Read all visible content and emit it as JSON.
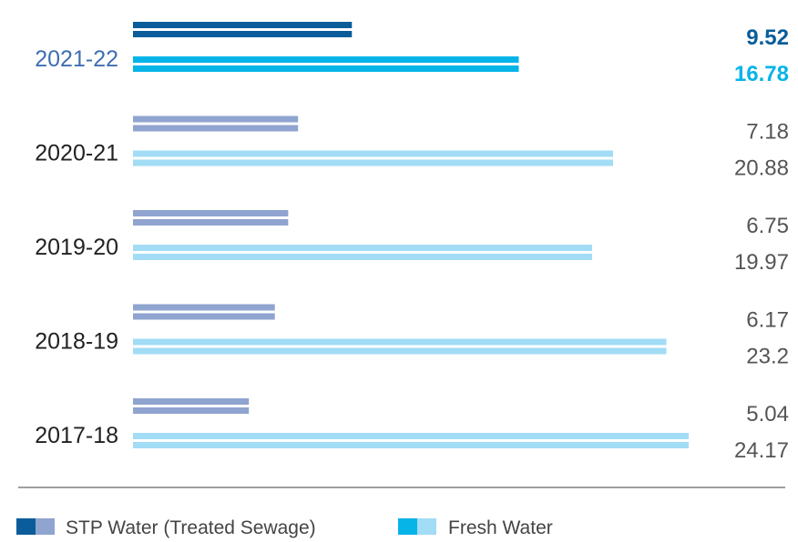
{
  "chart_data": {
    "type": "bar",
    "orientation": "horizontal",
    "categories": [
      "2021-22",
      "2020-21",
      "2019-20",
      "2018-19",
      "2017-18"
    ],
    "series": [
      {
        "name": "STP Water (Treated Sewage)",
        "values": [
          9.52,
          7.18,
          6.75,
          6.17,
          5.04
        ]
      },
      {
        "name": "Fresh Water",
        "values": [
          16.78,
          20.88,
          19.97,
          23.2,
          24.17
        ]
      }
    ],
    "value_labels": [
      [
        "9.52",
        "7.18",
        "6.75",
        "6.17",
        "5.04"
      ],
      [
        "16.78",
        "20.88",
        "19.97",
        "23.2",
        "24.17"
      ]
    ],
    "xlim": [
      0,
      24.17
    ],
    "grid": false,
    "legend_position": "bottom-left",
    "highlight_category": "2021-22",
    "colors": {
      "stp_highlight": "#0a5d9a",
      "fresh_highlight": "#06b4e8",
      "stp": "#8fa4cf",
      "fresh": "#a2dcf5",
      "highlight_label": "#3f6db3",
      "label": "#222222",
      "value_label": "#555555",
      "baseline": "#666666"
    }
  }
}
